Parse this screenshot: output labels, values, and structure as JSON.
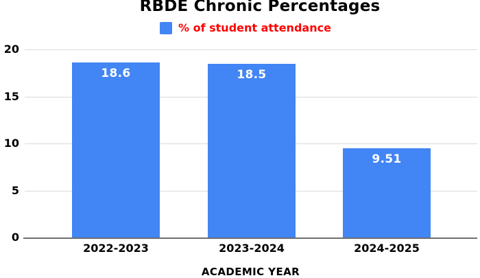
{
  "chart_data": {
    "type": "bar",
    "title": "RBDE Chronic Percentages",
    "legend": [
      "% of student attendance"
    ],
    "legend_position": "top",
    "categories": [
      "2022-2023",
      "2023-2024",
      "2024-2025"
    ],
    "values": [
      18.6,
      18.5,
      9.51
    ],
    "value_labels": [
      "18.6",
      "18.5",
      "9.51"
    ],
    "xlabel": "ACADEMIC YEAR",
    "ylabel": "",
    "ylim": [
      0,
      20
    ],
    "yticks": [
      0,
      5,
      10,
      15,
      20
    ],
    "grid": true
  },
  "colors": {
    "bar": "#4285f4",
    "legend_text": "#ff0000",
    "title_text": "#000000",
    "gridline": "#d9d9d9",
    "axis_line": "#6e6e6e",
    "value_label": "#ffffff",
    "background": "#ffffff"
  }
}
